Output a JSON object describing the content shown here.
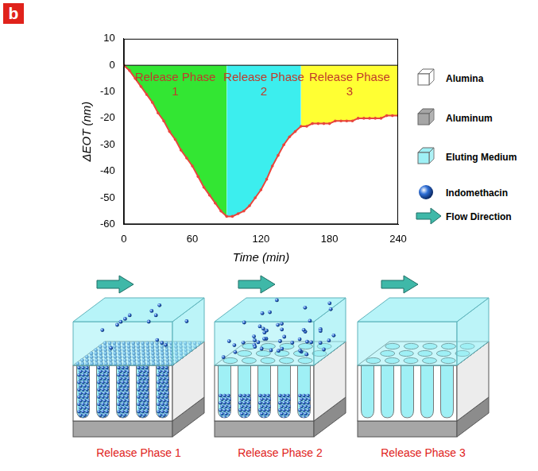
{
  "panel_label": "b",
  "chart_data": {
    "type": "line",
    "x": [
      0,
      5,
      10,
      15,
      20,
      25,
      30,
      35,
      40,
      45,
      50,
      55,
      60,
      65,
      70,
      75,
      80,
      85,
      90,
      95,
      100,
      105,
      110,
      115,
      120,
      125,
      130,
      135,
      140,
      145,
      150,
      155,
      160,
      165,
      170,
      175,
      180,
      185,
      190,
      195,
      200,
      205,
      210,
      215,
      220,
      225,
      230,
      235,
      240
    ],
    "series": [
      {
        "color": "#e8453c",
        "marker": "circle",
        "values": [
          0,
          -2,
          -5,
          -8,
          -11,
          -14,
          -18,
          -21,
          -25,
          -28,
          -32,
          -35,
          -38,
          -42,
          -46,
          -49,
          -52,
          -55,
          -57,
          -57,
          -56,
          -55,
          -53,
          -50,
          -47,
          -43,
          -38,
          -34,
          -30,
          -27,
          -25,
          -23,
          -23,
          -22,
          -22,
          -22,
          -22,
          -21,
          -21,
          -21,
          -21,
          -20,
          -20,
          -20,
          -20,
          -20,
          -19,
          -19,
          -19
        ]
      }
    ],
    "xlim": [
      0,
      240
    ],
    "xticks": [
      0,
      60,
      120,
      180,
      240
    ],
    "ylim": [
      -60,
      10
    ],
    "yticks": [
      10,
      0,
      -10,
      -20,
      -30,
      -40,
      -50,
      -60
    ],
    "x_label": "Time (min)",
    "y_label": "ΔEOT (nm)",
    "grid": false,
    "regions": [
      {
        "label": "Release Phase 1",
        "start": 0,
        "end": 90,
        "color": "#33e633"
      },
      {
        "label": "Release Phase 2",
        "start": 90,
        "end": 155,
        "color": "#3ceeee"
      },
      {
        "label": "Release Phase 3",
        "start": 155,
        "end": 240,
        "color": "#ffff33"
      }
    ]
  },
  "key": [
    {
      "label": "Alumina",
      "color": "#ffffff",
      "marker": "box"
    },
    {
      "label": "Aluminum",
      "color": "#a6a6a6",
      "marker": "box"
    },
    {
      "label": "Eluting Medium",
      "color": "#9ff0f5",
      "marker": "box"
    },
    {
      "label": "Indomethacin",
      "color": "#2f6fd6",
      "marker": "sphere"
    },
    {
      "label": "Flow Direction",
      "color": "#3fb8a8",
      "marker": "arrow"
    }
  ],
  "diagrams": [
    {
      "label": "Release Phase 1"
    },
    {
      "label": "Release Phase 2"
    },
    {
      "label": "Release Phase 3"
    }
  ]
}
